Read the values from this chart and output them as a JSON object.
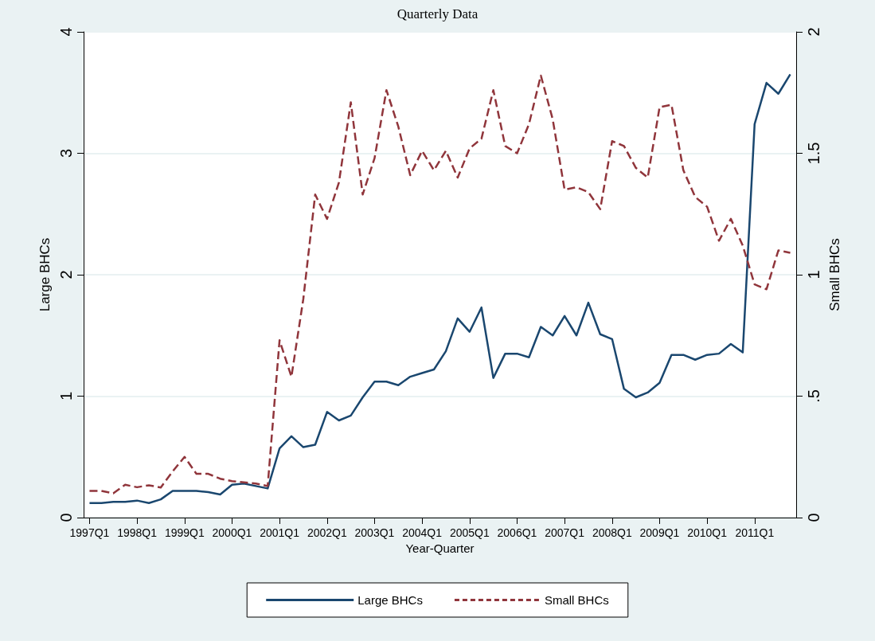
{
  "chart_data": {
    "type": "line",
    "title": "Quarterly Data",
    "xlabel": "Year-Quarter",
    "ylabel": "Large BHCs",
    "y2label": "Small BHCs",
    "categories": [
      "1997Q1",
      null,
      null,
      null,
      "1998Q1",
      null,
      null,
      null,
      "1999Q1",
      null,
      null,
      null,
      "2000Q1",
      null,
      null,
      null,
      "2001Q1",
      null,
      null,
      null,
      "2002Q1",
      null,
      null,
      null,
      "2003Q1",
      null,
      null,
      null,
      "2004Q1",
      null,
      null,
      null,
      "2005Q1",
      null,
      null,
      null,
      "2006Q1",
      null,
      null,
      null,
      "2007Q1",
      null,
      null,
      null,
      "2008Q1",
      null,
      null,
      null,
      "2009Q1",
      null,
      null,
      null,
      "2010Q1",
      null,
      null,
      null,
      "2011Q1",
      null,
      null,
      null
    ],
    "series": [
      {
        "name": "Large BHCs",
        "color": "#1a476f",
        "line_style": "solid",
        "values": [
          0.12,
          0.12,
          0.13,
          0.13,
          0.14,
          0.12,
          0.15,
          0.22,
          0.22,
          0.22,
          0.21,
          0.19,
          0.27,
          0.28,
          0.26,
          0.24,
          0.57,
          0.67,
          0.58,
          0.6,
          0.87,
          0.8,
          0.84,
          0.99,
          1.12,
          1.12,
          1.09,
          1.16,
          1.19,
          1.22,
          1.37,
          1.64,
          1.53,
          1.73,
          1.15,
          1.35,
          1.35,
          1.32,
          1.57,
          1.5,
          1.66,
          1.5,
          1.77,
          1.51,
          1.47,
          1.06,
          0.99,
          1.03,
          1.11,
          1.34,
          1.34,
          1.3,
          1.34,
          1.35,
          1.43,
          1.36,
          3.24,
          3.58,
          3.49,
          3.65
        ]
      },
      {
        "name": "Small BHCs",
        "color": "#90353b",
        "line_style": "dashed",
        "axis": "y2",
        "values": [
          0.11,
          0.11,
          0.1,
          0.135,
          0.125,
          0.133,
          0.124,
          0.19,
          0.25,
          0.18,
          0.18,
          0.16,
          0.15,
          0.145,
          0.14,
          0.13,
          0.73,
          0.58,
          0.9,
          1.33,
          1.23,
          1.38,
          1.71,
          1.33,
          1.48,
          1.76,
          1.61,
          1.41,
          1.51,
          1.43,
          1.51,
          1.4,
          1.52,
          1.56,
          1.76,
          1.53,
          1.5,
          1.62,
          1.82,
          1.64,
          1.35,
          1.36,
          1.34,
          1.27,
          1.55,
          1.53,
          1.44,
          1.4,
          1.69,
          1.7,
          1.43,
          1.32,
          1.28,
          1.14,
          1.23,
          1.12,
          0.96,
          0.94,
          1.1,
          1.09
        ]
      }
    ],
    "ylim": [
      0,
      4
    ],
    "yticks": [
      0,
      1,
      2,
      3,
      4
    ],
    "y2lim": [
      0,
      2
    ],
    "y2ticks": [
      0,
      {
        "value": 0.5,
        "label": ".5"
      },
      1,
      1.5,
      2
    ],
    "grid": "y",
    "legend": "bottom",
    "marker": "none"
  }
}
